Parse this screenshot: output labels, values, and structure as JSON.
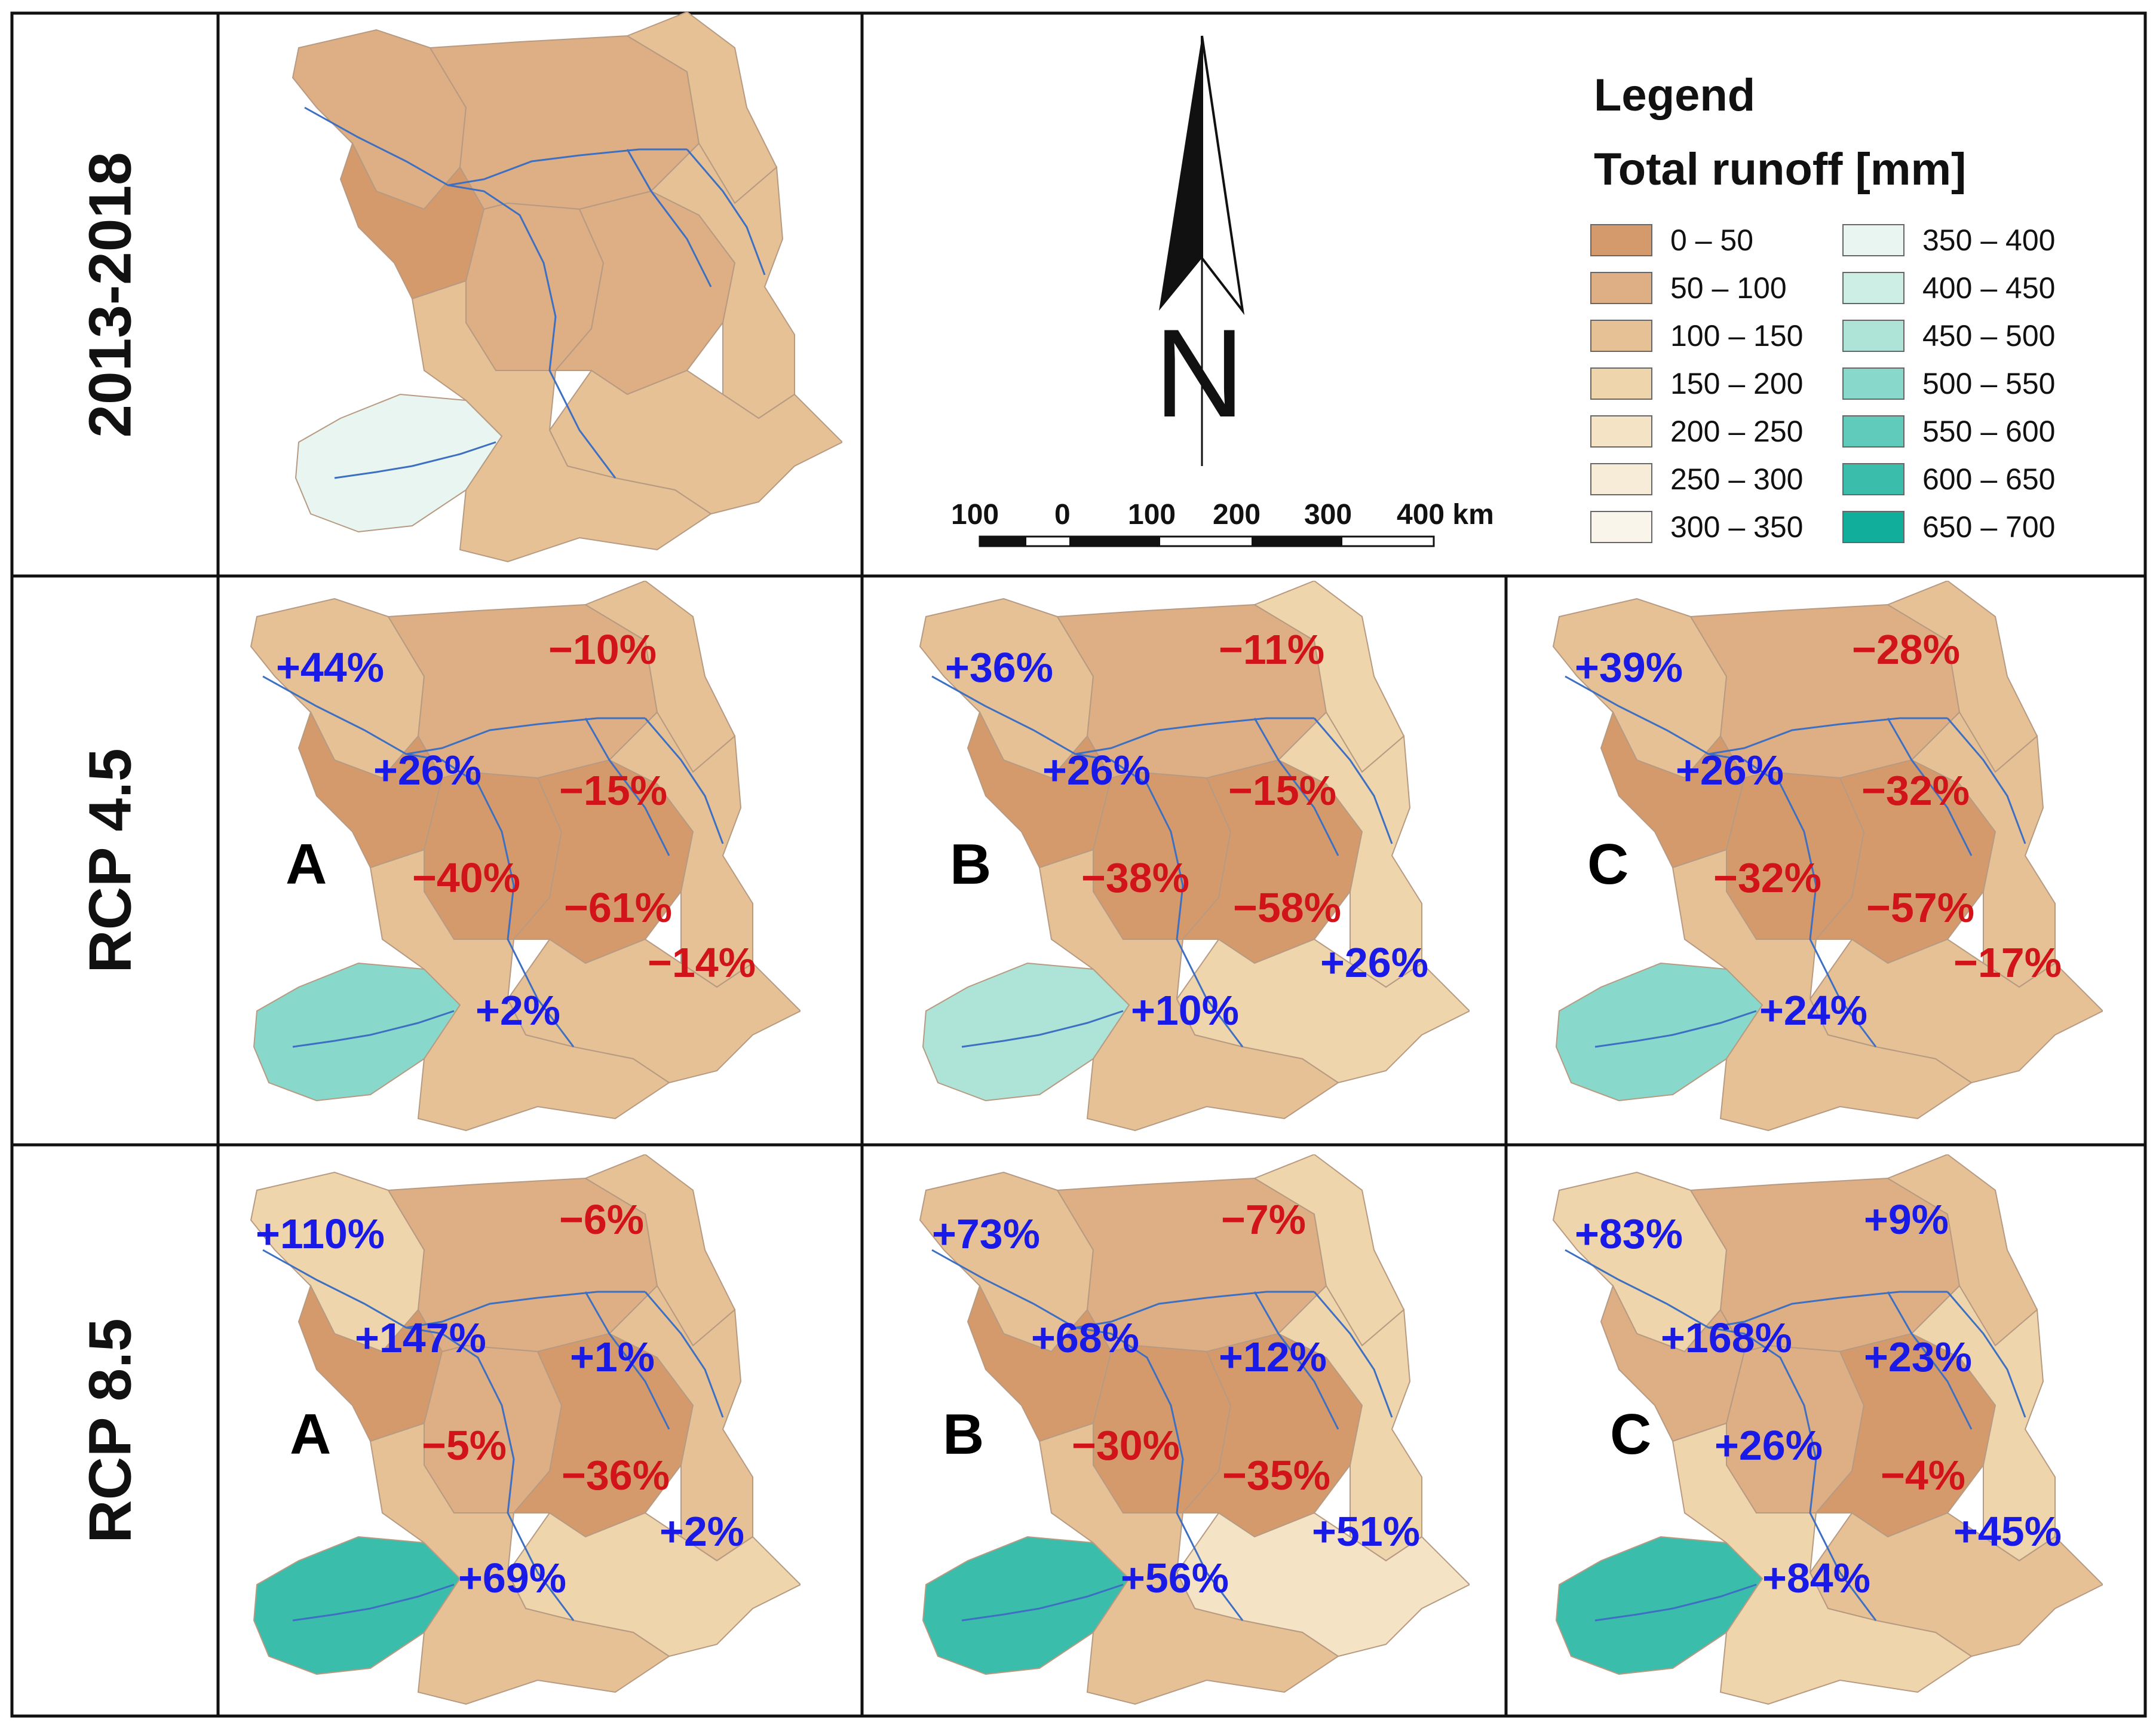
{
  "periods": {
    "baseline": "2013-2018",
    "rcp45": "RCP 4.5",
    "rcp85": "RCP 8.5"
  },
  "models": [
    "A",
    "B",
    "C"
  ],
  "north_arrow": "N",
  "scale_bar": {
    "ticks": [
      "100",
      "0",
      "100",
      "200",
      "300",
      "400 km"
    ]
  },
  "legend": {
    "title": "Legend",
    "subtitle": "Total runoff [mm]",
    "classes": [
      {
        "label": "0 – 50",
        "color": "#d59a6c"
      },
      {
        "label": "50 – 100",
        "color": "#deae84"
      },
      {
        "label": "100 – 150",
        "color": "#e6c196"
      },
      {
        "label": "150 – 200",
        "color": "#efd5ab"
      },
      {
        "label": "200 – 250",
        "color": "#f4e3c4"
      },
      {
        "label": "250 – 300",
        "color": "#f7ecd8"
      },
      {
        "label": "300 – 350",
        "color": "#faf5ea"
      },
      {
        "label": "350 – 400",
        "color": "#e9f5f0"
      },
      {
        "label": "400 – 450",
        "color": "#cdeee5"
      },
      {
        "label": "450 – 500",
        "color": "#aee3d8"
      },
      {
        "label": "500 – 550",
        "color": "#88d9cb"
      },
      {
        "label": "550 – 600",
        "color": "#60cbbb"
      },
      {
        "label": "600 – 650",
        "color": "#3bbdab"
      },
      {
        "label": "650 – 700",
        "color": "#10ae9b"
      }
    ]
  },
  "panels": {
    "rcp45_A": {
      "northwest": "+44%",
      "north": "−10%",
      "west_centre": "+26%",
      "centre_east": "−15%",
      "centre": "−40%",
      "south_centre": "−61%",
      "east": "−14%",
      "southwest": "+2%"
    },
    "rcp45_B": {
      "northwest": "+36%",
      "north": "−11%",
      "west_centre": "+26%",
      "centre_east": "−15%",
      "centre": "−38%",
      "south_centre": "−58%",
      "east": "+26%",
      "southwest": "+10%"
    },
    "rcp45_C": {
      "northwest": "+39%",
      "north": "−28%",
      "west_centre": "+26%",
      "centre_east": "−32%",
      "centre": "−32%",
      "south_centre": "−57%",
      "east": "−17%",
      "southwest": "+24%"
    },
    "rcp85_A": {
      "northwest": "+110%",
      "north": "−6%",
      "west_centre": "+147%",
      "centre_east": "+1%",
      "centre": "−5%",
      "south_centre": "−36%",
      "east": "+2%",
      "southwest": "+69%"
    },
    "rcp85_B": {
      "northwest": "+73%",
      "north": "−7%",
      "west_centre": "+68%",
      "centre_east": "+12%",
      "centre": "−30%",
      "south_centre": "−35%",
      "east": "+51%",
      "southwest": "+56%"
    },
    "rcp85_C": {
      "northwest": "+83%",
      "north": "+9%",
      "west_centre": "+168%",
      "centre_east": "+23%",
      "centre": "+26%",
      "south_centre": "−4%",
      "east": "+45%",
      "southwest": "+84%"
    }
  },
  "region_classes": {
    "baseline": {
      "nw": "50 – 100",
      "wc": "0 – 50",
      "n": "50 – 100",
      "ne": "100 – 150",
      "c": "50 – 100",
      "cs": "50 – 100",
      "e": "100 – 150",
      "se": "100 – 150",
      "sw": "350 – 400",
      "s": "100 – 150"
    },
    "rcp45_A": {
      "nw": "100 – 150",
      "wc": "0 – 50",
      "n": "50 – 100",
      "ne": "100 – 150",
      "c": "0 – 50",
      "cs": "0 – 50",
      "e": "100 – 150",
      "se": "100 – 150",
      "sw": "500 – 550",
      "s": "100 – 150"
    },
    "rcp45_B": {
      "nw": "100 – 150",
      "wc": "0 – 50",
      "n": "50 – 100",
      "ne": "150 – 200",
      "c": "0 – 50",
      "cs": "0 – 50",
      "e": "150 – 200",
      "se": "150 – 200",
      "sw": "450 – 500",
      "s": "100 – 150"
    },
    "rcp45_C": {
      "nw": "100 – 150",
      "wc": "0 – 50",
      "n": "50 – 100",
      "ne": "100 – 150",
      "c": "0 – 50",
      "cs": "0 – 50",
      "e": "100 – 150",
      "se": "100 – 150",
      "sw": "500 – 550",
      "s": "100 – 150"
    },
    "rcp85_A": {
      "nw": "150 – 200",
      "wc": "0 – 50",
      "n": "50 – 100",
      "ne": "100 – 150",
      "c": "50 – 100",
      "cs": "0 – 50",
      "e": "100 – 150",
      "se": "150 – 200",
      "sw": "600 – 650",
      "s": "100 – 150"
    },
    "rcp85_B": {
      "nw": "100 – 150",
      "wc": "0 – 50",
      "n": "50 – 100",
      "ne": "150 – 200",
      "c": "0 – 50",
      "cs": "0 – 50",
      "e": "150 – 200",
      "se": "200 – 250",
      "sw": "600 – 650",
      "s": "100 – 150"
    },
    "rcp85_C": {
      "nw": "150 – 200",
      "wc": "50 – 100",
      "n": "50 – 100",
      "ne": "100 – 150",
      "c": "50 – 100",
      "cs": "0 – 50",
      "e": "150 – 200",
      "se": "100 – 150",
      "sw": "600 – 650",
      "s": "150 – 200"
    }
  }
}
